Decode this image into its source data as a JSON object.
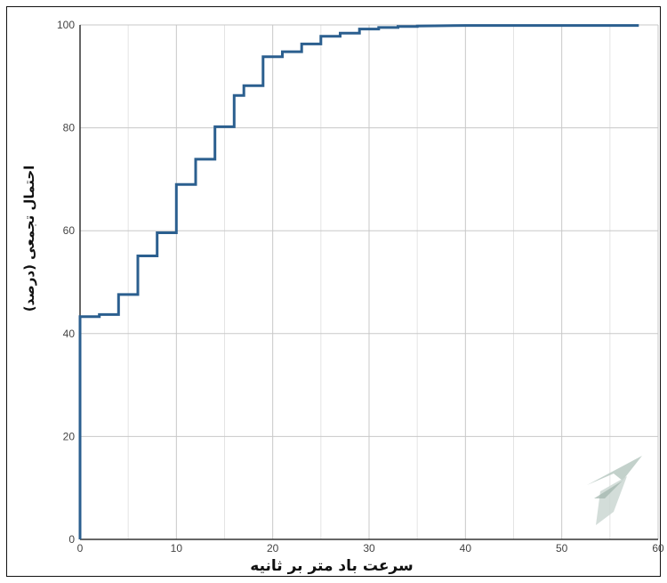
{
  "chart_data": {
    "type": "line",
    "xlabel": "سرعت باد متر بر ثانیه",
    "ylabel": "احتمال تجمعی (درصد)",
    "xlim": [
      0,
      60
    ],
    "ylim": [
      0,
      100
    ],
    "x_ticks": [
      "0",
      "10",
      "20",
      "30",
      "40",
      "50",
      "60"
    ],
    "y_ticks": [
      "0",
      "20",
      "40",
      "60",
      "80",
      "100"
    ],
    "x_minor_step": 5,
    "grid": true,
    "line_color": "#2b5f8f",
    "series": [
      {
        "x": [
          0,
          0,
          2,
          2,
          4,
          4,
          6,
          6,
          8,
          8,
          10,
          10,
          12,
          12,
          14,
          14,
          16,
          16,
          17,
          17,
          19,
          19,
          21,
          21,
          23,
          23,
          25,
          25,
          27,
          27,
          29,
          29,
          31,
          31,
          33,
          33,
          35,
          35,
          40,
          58
        ],
        "y": [
          0,
          43.3,
          43.3,
          43.7,
          43.7,
          47.6,
          47.6,
          55.1,
          55.1,
          59.6,
          59.6,
          69.0,
          69.0,
          73.9,
          73.9,
          80.2,
          80.2,
          86.3,
          86.3,
          88.2,
          88.2,
          93.8,
          93.8,
          94.8,
          94.8,
          96.3,
          96.3,
          97.8,
          97.8,
          98.4,
          98.4,
          99.2,
          99.2,
          99.5,
          99.5,
          99.7,
          99.7,
          99.8,
          99.9,
          99.9
        ]
      }
    ]
  }
}
